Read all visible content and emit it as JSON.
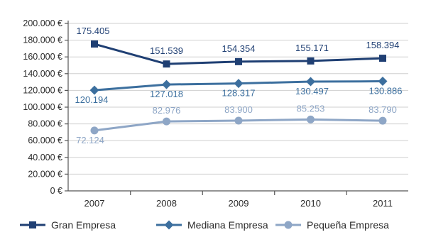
{
  "colors": {
    "background": "#ffffff",
    "gran": "#1f3f73",
    "mediana": "#3c6f9e",
    "pequena": "#8ea6c6",
    "grid": "#cfcfcf",
    "axis": "#555555"
  },
  "chart_data": {
    "type": "line",
    "title": "",
    "xlabel": "",
    "ylabel": "",
    "categories": [
      "2007",
      "2008",
      "2009",
      "2010",
      "2011"
    ],
    "ylim": [
      0,
      200000
    ],
    "yticks": [
      0,
      20000,
      40000,
      60000,
      80000,
      100000,
      120000,
      140000,
      160000,
      180000,
      200000
    ],
    "ytick_labels": [
      "0 €",
      "20.000 €",
      "40.000 €",
      "60.000 €",
      "80.000 €",
      "100.000 €",
      "120.000 €",
      "140.000 €",
      "160.000 €",
      "180.000 €",
      "200.000 €"
    ],
    "grid": true,
    "legend_position": "bottom",
    "series": [
      {
        "name": "Gran Empresa",
        "marker": "square",
        "values": [
          175405,
          151539,
          154354,
          155171,
          158394
        ],
        "labels": [
          "175.405",
          "151.539",
          "154.354",
          "155.171",
          "158.394"
        ],
        "label_position": "above"
      },
      {
        "name": "Mediana Empresa",
        "marker": "diamond",
        "values": [
          120194,
          127018,
          128317,
          130497,
          130886
        ],
        "labels": [
          "120.194",
          "127.018",
          "128.317",
          "130.497",
          "130.886"
        ],
        "label_position": "below"
      },
      {
        "name": "Pequeña Empresa",
        "marker": "circle",
        "values": [
          72124,
          82976,
          83900,
          85253,
          83790
        ],
        "labels": [
          "72.124",
          "82.976",
          "83.900",
          "85.253",
          "83.790"
        ],
        "label_position": "mixed"
      }
    ]
  }
}
